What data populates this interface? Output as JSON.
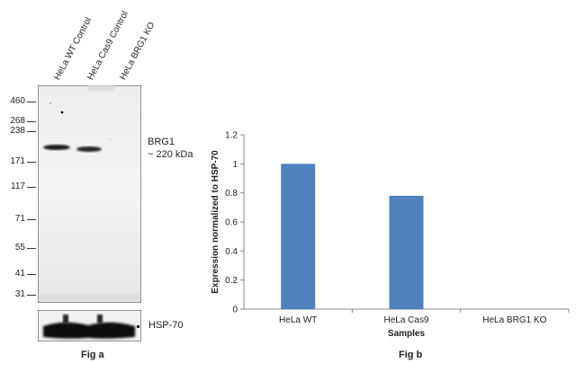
{
  "western": {
    "lanes": [
      "HeLa WT Control",
      "HeLa Cas9 Control",
      "HeLa BRG1 KO"
    ],
    "mw_markers": [
      "460",
      "268",
      "238",
      "171",
      "117",
      "71",
      "55",
      "41",
      "31"
    ],
    "target_label": "BRG1",
    "target_size": "~ 220 kDa",
    "loading_label": "HSP-70",
    "fig_label": "Fig a"
  },
  "chart_data": {
    "type": "bar",
    "categories": [
      "HeLa WT",
      "HeLa Cas9",
      "HeLa BRG1 KO"
    ],
    "values": [
      1.0,
      0.78,
      0
    ],
    "xlabel": "Samples",
    "ylabel": "Expression  normalized to HSP-70",
    "ylim": [
      0,
      1.2
    ],
    "yticks": [
      "0",
      "0.2",
      "0.4",
      "0.6",
      "0.8",
      "1",
      "1.2"
    ],
    "bar_color": "#4f81bd",
    "fig_label": "Fig b"
  }
}
